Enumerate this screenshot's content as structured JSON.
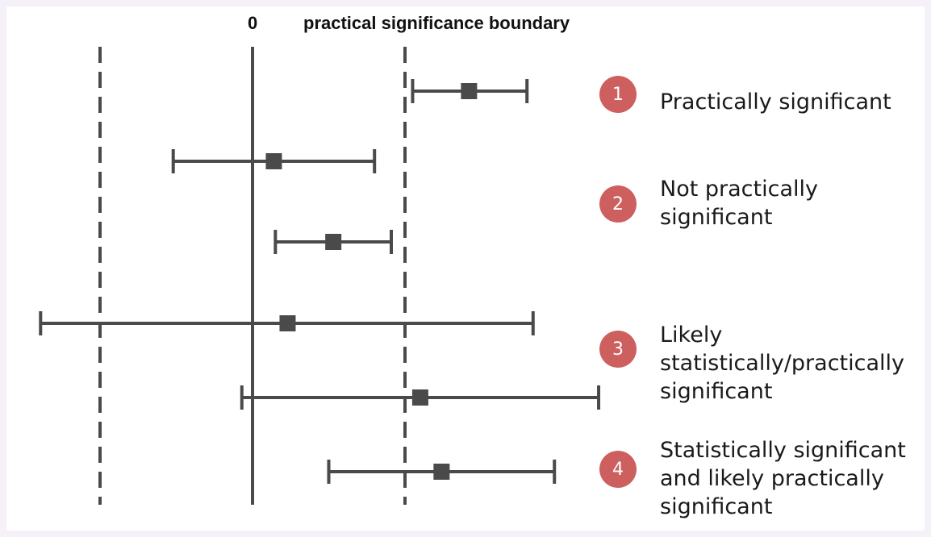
{
  "header": {
    "zero_label": "0",
    "boundary_label": "practical significance boundary"
  },
  "colors": {
    "line": "#4a4a4a",
    "badge": "#cd5f5f",
    "canvas": "#ffffff",
    "frame": "#f6f0f9"
  },
  "categories": [
    {
      "badge": "1",
      "lines": [
        "Practically significant"
      ]
    },
    {
      "badge": "2",
      "lines": [
        "Not practically",
        "significant"
      ]
    },
    {
      "badge": "3",
      "lines": [
        "Likely",
        "statistically/practically",
        "significant"
      ]
    },
    {
      "badge": "4",
      "lines": [
        "Statistically significant",
        "and likely practically",
        "significant"
      ]
    }
  ],
  "chart_data": {
    "type": "scatter",
    "reference_lines": [
      {
        "value": -1,
        "style": "dashed"
      },
      {
        "value": 0,
        "style": "solid"
      },
      {
        "value": 1,
        "style": "dashed"
      }
    ],
    "intervals": [
      {
        "estimate": 1.42,
        "lower": 1.05,
        "upper": 1.8
      },
      {
        "estimate": 0.14,
        "lower": -0.52,
        "upper": 0.8
      },
      {
        "estimate": 0.53,
        "lower": 0.15,
        "upper": 0.91
      },
      {
        "estimate": 0.23,
        "lower": -1.39,
        "upper": 1.84
      },
      {
        "estimate": 1.1,
        "lower": -0.07,
        "upper": 2.27
      },
      {
        "estimate": 1.24,
        "lower": 0.5,
        "upper": 1.98
      }
    ]
  }
}
